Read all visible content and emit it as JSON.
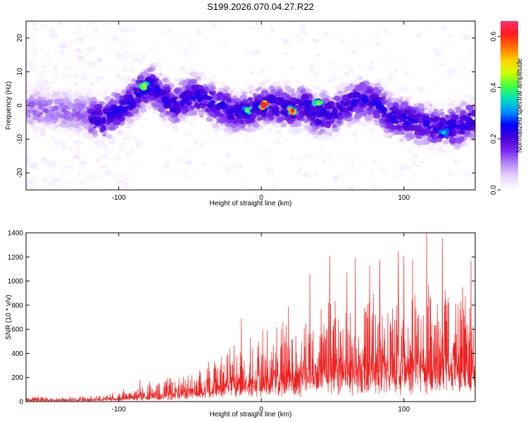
{
  "figure_title": "S199.2026.070.04.27.R22",
  "chart_data": [
    {
      "type": "heatmap",
      "title": "S199.2026.070.04.27.R22",
      "xlabel": "Height of straight line (km)",
      "ylabel": "Frequency (Hz)",
      "xlim": [
        -165,
        150
      ],
      "ylim": [
        -25,
        25
      ],
      "x_ticks": [
        -100,
        0,
        100
      ],
      "x_tick_labels": [
        "-100",
        "0",
        "100"
      ],
      "y_ticks": [
        -20,
        -10,
        0,
        10,
        20
      ],
      "y_tick_labels": [
        "-20",
        "-10",
        "0",
        "10",
        "20"
      ],
      "colorbar": {
        "label": "Normalized spectral amplitude",
        "range": [
          0.0,
          0.66
        ],
        "ticks": [
          0.0,
          0.2,
          0.4,
          0.6
        ],
        "tick_labels": [
          "0.0",
          "0.2",
          "0.4",
          "0.6"
        ],
        "colormap": [
          "#ffffff",
          "#e9d6ff",
          "#b58cf5",
          "#7a28f0",
          "#4a00d8",
          "#0000ff",
          "#0090ff",
          "#00e0c0",
          "#40ff40",
          "#d0ff00",
          "#ffd000",
          "#ff7000",
          "#ff1a1a",
          "#ff3070"
        ]
      },
      "ridge_center_hz": {
        "x": [
          -160,
          -130,
          -110,
          -95,
          -85,
          -78,
          -70,
          -60,
          -50,
          -40,
          -30,
          -20,
          -10,
          0,
          10,
          20,
          30,
          40,
          50,
          60,
          70,
          80,
          90,
          100,
          110,
          120,
          130,
          140,
          148
        ],
        "y": [
          -1,
          -2,
          -4,
          0,
          4,
          6,
          3,
          0,
          3,
          2,
          0,
          -2,
          -2,
          0,
          0,
          -1,
          0,
          -3,
          -2,
          0,
          2,
          1,
          -3,
          -4,
          -5,
          -6,
          -7,
          -6,
          -4
        ]
      },
      "peaks": [
        {
          "x": 2,
          "y": 0,
          "value": 0.64
        },
        {
          "x": 22,
          "y": -1.5,
          "value": 0.62
        },
        {
          "x": -82,
          "y": 6,
          "value": 0.45
        },
        {
          "x": -10,
          "y": -1.5,
          "value": 0.42
        },
        {
          "x": 40,
          "y": 0.5,
          "value": 0.43
        },
        {
          "x": 128,
          "y": -8,
          "value": 0.35
        }
      ]
    },
    {
      "type": "line",
      "xlabel": "Height of straight line (km)",
      "ylabel": "SNR (10 * v/v)",
      "xlim": [
        -165,
        150
      ],
      "ylim": [
        0,
        1400
      ],
      "x_ticks": [
        -100,
        0,
        100
      ],
      "x_tick_labels": [
        "-100",
        "0",
        "100"
      ],
      "y_ticks": [
        0,
        200,
        400,
        600,
        800,
        1000,
        1200,
        1400
      ],
      "y_tick_labels": [
        "0",
        "200",
        "400",
        "600",
        "800",
        "1000",
        "1200",
        "1400"
      ],
      "series": [
        {
          "name": "SNR",
          "color": "#ee2222",
          "envelope_x": [
            -165,
            -140,
            -120,
            -100,
            -80,
            -60,
            -40,
            -20,
            0,
            20,
            40,
            60,
            80,
            100,
            120,
            140,
            150
          ],
          "envelope_y": [
            30,
            30,
            35,
            60,
            110,
            160,
            230,
            330,
            420,
            500,
            580,
            620,
            660,
            700,
            720,
            720,
            700
          ],
          "spikes": [
            {
              "x": -85,
              "y": 180
            },
            {
              "x": -37,
              "y": 330
            },
            {
              "x": -22,
              "y": 440
            },
            {
              "x": -14,
              "y": 690
            },
            {
              "x": 1,
              "y": 600
            },
            {
              "x": 19,
              "y": 790
            },
            {
              "x": 34,
              "y": 1060
            },
            {
              "x": 48,
              "y": 1210
            },
            {
              "x": 60,
              "y": 1070
            },
            {
              "x": 66,
              "y": 1190
            },
            {
              "x": 76,
              "y": 1130
            },
            {
              "x": 83,
              "y": 1180
            },
            {
              "x": 96,
              "y": 1250
            },
            {
              "x": 100,
              "y": 1210
            },
            {
              "x": 106,
              "y": 1180
            },
            {
              "x": 116,
              "y": 1400
            },
            {
              "x": 127,
              "y": 1360
            },
            {
              "x": 147,
              "y": 1170
            }
          ]
        }
      ]
    }
  ]
}
